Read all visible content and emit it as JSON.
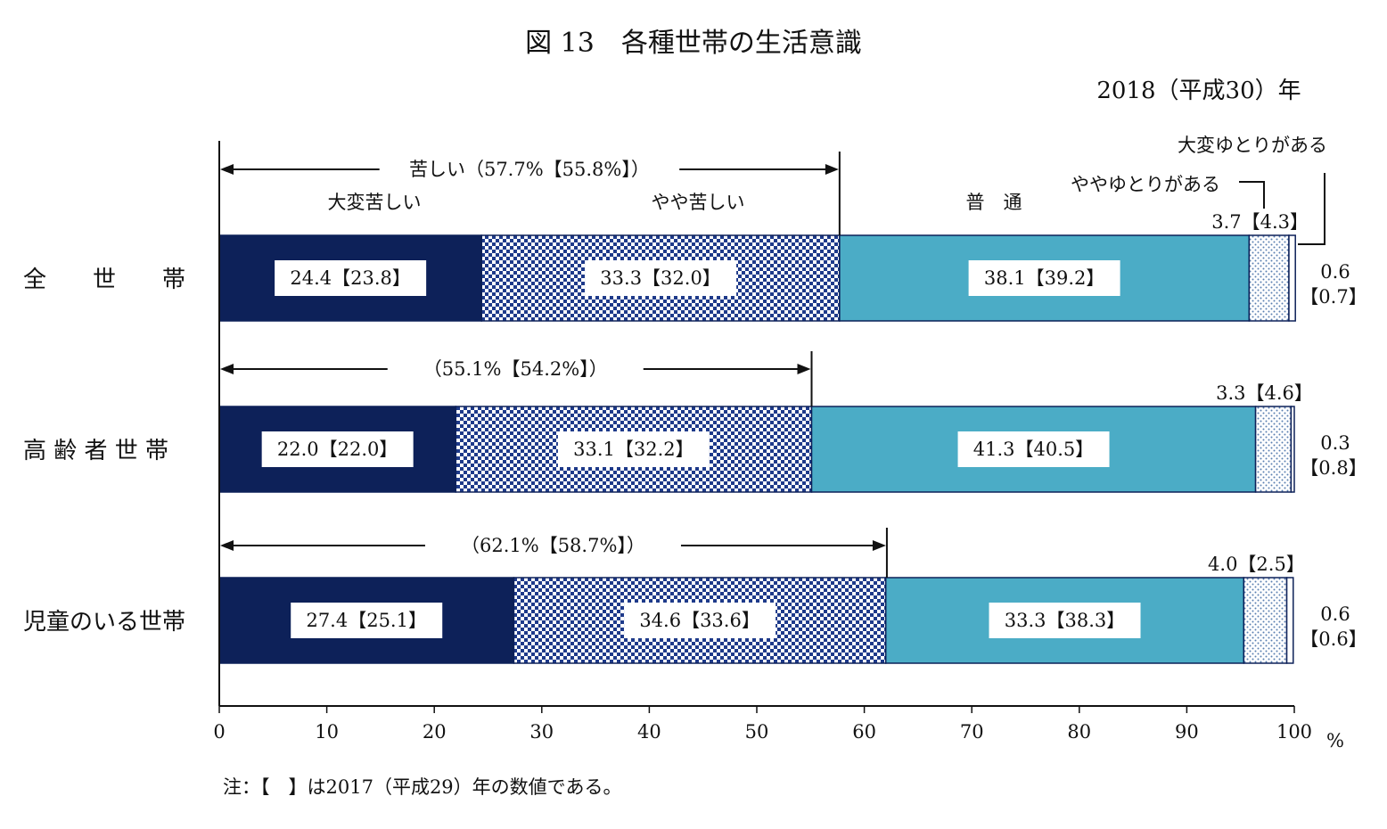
{
  "chart_data": {
    "type": "bar",
    "orientation": "horizontal",
    "stacked": true,
    "title": "図 13　各種世帯の生活意識",
    "subtitle": "2018（平成30）年",
    "unit_label": "%",
    "note": "注：【　】は2017（平成29）年の数値である。",
    "xlim": [
      0,
      100
    ],
    "xticks": [
      "0",
      "10",
      "20",
      "30",
      "40",
      "50",
      "60",
      "70",
      "80",
      "90",
      "100"
    ],
    "categories": [
      "全　　世　　帯",
      "高 齢 者 世 帯",
      "児童のいる世帯"
    ],
    "series": [
      {
        "name": "大変苦しい",
        "color": "#0d2159",
        "values": [
          24.4,
          22.0,
          27.4
        ],
        "prev": [
          23.8,
          22.0,
          25.1
        ],
        "labels": [
          "24.4【23.8】",
          "22.0【22.0】",
          "27.4【25.1】"
        ]
      },
      {
        "name": "やや苦しい",
        "color": "#1e3a8a",
        "values": [
          33.3,
          33.1,
          34.6
        ],
        "prev": [
          32.0,
          32.2,
          33.6
        ],
        "labels": [
          "33.3【32.0】",
          "33.1【32.2】",
          "34.6【33.6】"
        ]
      },
      {
        "name": "普　通",
        "color": "#4bacc6",
        "values": [
          38.1,
          41.3,
          33.3
        ],
        "prev": [
          39.2,
          40.5,
          38.3
        ],
        "labels": [
          "38.1【39.2】",
          "41.3【40.5】",
          "33.3【38.3】"
        ]
      },
      {
        "name": "ややゆとりがある",
        "color": "#8aa8cc",
        "values": [
          3.7,
          3.3,
          4.0
        ],
        "prev": [
          4.3,
          4.6,
          2.5
        ],
        "labels": [
          "3.7【4.3】",
          "3.3【4.6】",
          "4.0【2.5】"
        ]
      },
      {
        "name": "大変ゆとりがある",
        "color": "#ffffff",
        "values": [
          0.6,
          0.3,
          0.6
        ],
        "prev": [
          0.7,
          0.8,
          0.6
        ],
        "labels_top": [
          "0.6",
          "0.3",
          "0.6"
        ],
        "labels_bottom": [
          "【0.7】",
          "【0.8】",
          "【0.6】"
        ]
      }
    ],
    "brackets": [
      {
        "label": "苦しい（57.7%【55.8%】）",
        "value": 57.7
      },
      {
        "label": "（55.1%【54.2%】）",
        "value": 55.1
      },
      {
        "label": "（62.1%【58.7%】）",
        "value": 62.1
      }
    ]
  }
}
